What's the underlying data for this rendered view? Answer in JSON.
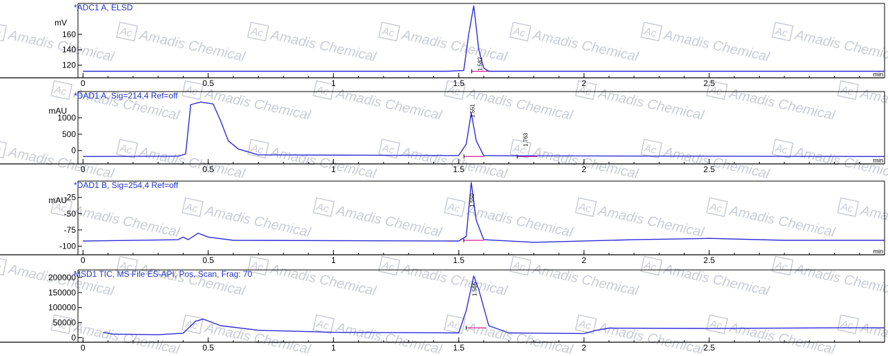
{
  "watermark": {
    "text": "Amadis Chemical",
    "logo_text": "Ac",
    "color": "#c8cdd6"
  },
  "colors": {
    "trace": "#2b2bd9",
    "baseline": "#e0169a",
    "axis": "#000000",
    "title": "#2233cc"
  },
  "chart_data": [
    {
      "type": "line",
      "title": "*ADC1 A, ELSD",
      "ylabel": "mV",
      "xlabel": "min",
      "xlim": [
        -0.02,
        3.2
      ],
      "ylim": [
        108,
        200
      ],
      "yticks": [
        120,
        140,
        160
      ],
      "yticks_labels": [
        "120",
        "140",
        "160"
      ],
      "xticks": [
        0,
        0.5,
        1,
        1.5,
        2,
        2.5
      ],
      "xticks_labels": [
        "0",
        "0.5",
        "1",
        "1.5",
        "2",
        "2.5"
      ],
      "series": [
        {
          "x": [
            0,
            1.45,
            1.52,
            1.54,
            1.56,
            1.58,
            1.6,
            1.62,
            1.7,
            3.2
          ],
          "values": [
            112,
            112,
            113,
            160,
            197,
            140,
            116,
            112,
            112,
            112
          ]
        }
      ],
      "peaks": [
        {
          "x": 1.582,
          "label": "1.582"
        }
      ]
    },
    {
      "type": "line",
      "title": "*DAD1 A, Sig=214,4 Ref=off",
      "ylabel": "mAU",
      "xlabel": "min",
      "xlim": [
        -0.02,
        3.2
      ],
      "ylim": [
        -300,
        1800
      ],
      "yticks": [
        0,
        500,
        1000
      ],
      "yticks_labels": [
        "0",
        "500",
        "1000"
      ],
      "xticks": [
        0,
        0.5,
        1,
        1.5,
        2,
        2.5
      ],
      "xticks_labels": [
        "0",
        "0.5",
        "1",
        "1.5",
        "2",
        "2.5"
      ],
      "series": [
        {
          "x": [
            0,
            0.38,
            0.41,
            0.43,
            0.47,
            0.52,
            0.55,
            0.58,
            0.62,
            0.7,
            1.5,
            1.53,
            1.55,
            1.57,
            1.6,
            1.7,
            3.2
          ],
          "values": [
            -180,
            -170,
            -100,
            1400,
            1480,
            1420,
            900,
            300,
            50,
            -130,
            -150,
            200,
            1150,
            300,
            -150,
            -160,
            -180
          ]
        }
      ],
      "peaks": [
        {
          "x": 1.551,
          "label": "1.551"
        },
        {
          "x": 1.763,
          "label": "1.763"
        }
      ]
    },
    {
      "type": "line",
      "title": "*DAD1 B, Sig=254,4 Ref=off",
      "ylabel": "mAU",
      "xlabel": "min",
      "xlim": [
        -0.02,
        3.2
      ],
      "ylim": [
        -110,
        0
      ],
      "yticks": [
        -100,
        -75,
        -50,
        -25
      ],
      "yticks_labels": [
        "-100",
        "-75",
        "-50",
        "-25"
      ],
      "xticks": [
        0,
        0.5,
        1,
        1.5,
        2,
        2.5
      ],
      "xticks_labels": [
        "0",
        "0.5",
        "1",
        "1.5",
        "2",
        "2.5"
      ],
      "series": [
        {
          "x": [
            0,
            0.38,
            0.4,
            0.42,
            0.46,
            0.5,
            0.6,
            1.5,
            1.53,
            1.55,
            1.57,
            1.6,
            1.8,
            2.2,
            2.5,
            2.8,
            3.2
          ],
          "values": [
            -92,
            -90,
            -86,
            -90,
            -80,
            -86,
            -91,
            -92,
            -85,
            -2,
            -60,
            -90,
            -94,
            -90,
            -88,
            -91,
            -91
          ]
        }
      ],
      "peaks": [
        {
          "x": 1.55,
          "label": "1.550"
        }
      ]
    },
    {
      "type": "line",
      "title": "MSD1 TIC, MS File     ES-API, Pos, Scan, Frag: 70",
      "ylabel": "",
      "xlabel": "",
      "xlim": [
        -0.02,
        3.2
      ],
      "ylim": [
        -8000,
        225000
      ],
      "yticks": [
        0,
        50000,
        100000,
        150000,
        200000
      ],
      "yticks_labels": [
        "0",
        "50000",
        "100000",
        "150000",
        "200000"
      ],
      "xticks": [
        0,
        0.5,
        1,
        1.5,
        2,
        2.5
      ],
      "xticks_labels": [
        "0",
        "0.5",
        "1",
        "1.5",
        "2",
        "2.5"
      ],
      "series": [
        {
          "x": [
            0.08,
            0.12,
            0.3,
            0.4,
            0.45,
            0.48,
            0.55,
            0.7,
            1.0,
            1.5,
            1.53,
            1.56,
            1.58,
            1.62,
            1.7,
            2.0,
            2.05,
            2.1,
            2.5,
            3.0,
            3.2
          ],
          "values": [
            18000,
            12000,
            10000,
            15000,
            55000,
            62000,
            40000,
            25000,
            18000,
            16000,
            90000,
            205000,
            160000,
            40000,
            16000,
            14000,
            25000,
            32000,
            31000,
            33000,
            33000
          ]
        }
      ],
      "peaks": [
        {
          "x": 1.56,
          "label": "1.566"
        }
      ]
    }
  ]
}
